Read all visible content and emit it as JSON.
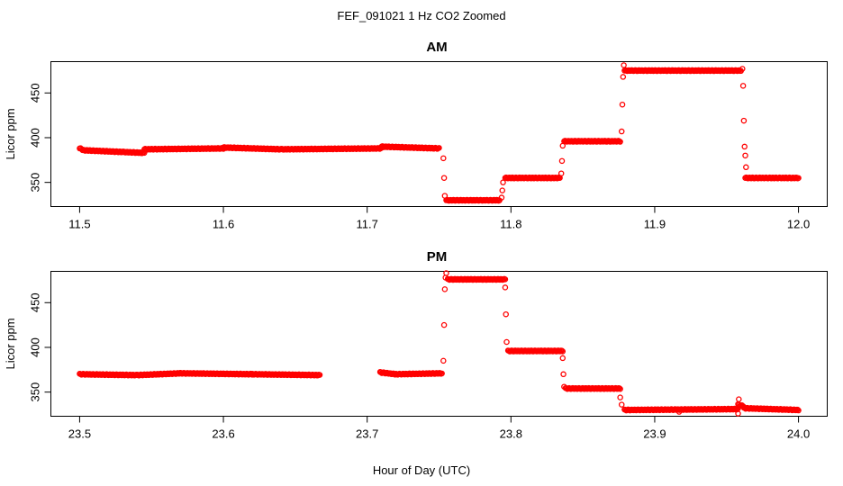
{
  "figure": {
    "title": "FEF_091021  1 Hz CO2 Zoomed",
    "xlabel": "Hour of Day (UTC)"
  },
  "chart_data": [
    {
      "type": "scatter",
      "title": "AM",
      "ylabel": "Licor ppm",
      "xlim": [
        11.48,
        12.02
      ],
      "ylim": [
        323,
        485
      ],
      "xticks": [
        11.5,
        11.6,
        11.7,
        11.8,
        11.9,
        12.0
      ],
      "xtick_labels": [
        "11.5",
        "11.6",
        "11.7",
        "11.8",
        "11.9",
        "12.0"
      ],
      "yticks": [
        350,
        400,
        450
      ],
      "ytick_labels": [
        "350",
        "400",
        "450"
      ],
      "grid": false,
      "legend": "none",
      "marker_color": "#ff0000",
      "runs": [
        {
          "x0": 11.5,
          "x1": 11.502,
          "y0": 388,
          "y1": 387
        },
        {
          "x0": 11.502,
          "x1": 11.53,
          "y0": 386,
          "y1": 384
        },
        {
          "x0": 11.53,
          "x1": 11.545,
          "y0": 384,
          "y1": 383
        },
        {
          "x0": 11.545,
          "x1": 11.6,
          "y0": 387,
          "y1": 388
        },
        {
          "x0": 11.6,
          "x1": 11.64,
          "y0": 389,
          "y1": 387
        },
        {
          "x0": 11.64,
          "x1": 11.71,
          "y0": 387,
          "y1": 388
        },
        {
          "x0": 11.71,
          "x1": 11.75,
          "y0": 390,
          "y1": 388
        },
        {
          "x0": 11.755,
          "x1": 11.792,
          "y0": 330,
          "y1": 330
        },
        {
          "x0": 11.796,
          "x1": 11.834,
          "y0": 355,
          "y1": 355
        },
        {
          "x0": 11.837,
          "x1": 11.876,
          "y0": 396,
          "y1": 396
        },
        {
          "x0": 11.879,
          "x1": 11.96,
          "y0": 475,
          "y1": 475
        },
        {
          "x0": 11.963,
          "x1": 12.0,
          "y0": 355,
          "y1": 355
        }
      ],
      "points": [
        {
          "x": 11.753,
          "y": 377
        },
        {
          "x": 11.7535,
          "y": 355
        },
        {
          "x": 11.754,
          "y": 335
        },
        {
          "x": 11.7935,
          "y": 333
        },
        {
          "x": 11.794,
          "y": 341
        },
        {
          "x": 11.7945,
          "y": 350
        },
        {
          "x": 11.835,
          "y": 360
        },
        {
          "x": 11.8355,
          "y": 374
        },
        {
          "x": 11.836,
          "y": 391
        },
        {
          "x": 11.877,
          "y": 407
        },
        {
          "x": 11.8775,
          "y": 437
        },
        {
          "x": 11.878,
          "y": 468
        },
        {
          "x": 11.8785,
          "y": 481
        },
        {
          "x": 11.961,
          "y": 477
        },
        {
          "x": 11.9615,
          "y": 458
        },
        {
          "x": 11.962,
          "y": 419
        },
        {
          "x": 11.9625,
          "y": 390
        },
        {
          "x": 11.963,
          "y": 380
        },
        {
          "x": 11.9635,
          "y": 367
        }
      ]
    },
    {
      "type": "scatter",
      "title": "PM",
      "ylabel": "Licor ppm",
      "xlim": [
        23.48,
        24.02
      ],
      "ylim": [
        323,
        485
      ],
      "xticks": [
        23.5,
        23.6,
        23.7,
        23.8,
        23.9,
        24.0
      ],
      "xtick_labels": [
        "23.5",
        "23.6",
        "23.7",
        "23.8",
        "23.9",
        "24.0"
      ],
      "yticks": [
        350,
        400,
        450
      ],
      "ytick_labels": [
        "350",
        "400",
        "450"
      ],
      "grid": false,
      "legend": "none",
      "marker_color": "#ff0000",
      "runs": [
        {
          "x0": 23.5,
          "x1": 23.54,
          "y0": 370,
          "y1": 369
        },
        {
          "x0": 23.54,
          "x1": 23.57,
          "y0": 369,
          "y1": 371
        },
        {
          "x0": 23.57,
          "x1": 23.62,
          "y0": 371,
          "y1": 370
        },
        {
          "x0": 23.62,
          "x1": 23.667,
          "y0": 370,
          "y1": 369
        },
        {
          "x0": 23.709,
          "x1": 23.72,
          "y0": 372,
          "y1": 370
        },
        {
          "x0": 23.72,
          "x1": 23.752,
          "y0": 370,
          "y1": 371
        },
        {
          "x0": 23.756,
          "x1": 23.796,
          "y0": 476,
          "y1": 476
        },
        {
          "x0": 23.798,
          "x1": 23.836,
          "y0": 396,
          "y1": 396
        },
        {
          "x0": 23.838,
          "x1": 23.876,
          "y0": 354,
          "y1": 354
        },
        {
          "x0": 23.879,
          "x1": 23.958,
          "y0": 330,
          "y1": 331
        },
        {
          "x0": 23.958,
          "x1": 23.962,
          "y0": 336,
          "y1": 334
        },
        {
          "x0": 23.962,
          "x1": 24.0,
          "y0": 332,
          "y1": 330
        }
      ],
      "points": [
        {
          "x": 23.753,
          "y": 385
        },
        {
          "x": 23.7535,
          "y": 425
        },
        {
          "x": 23.754,
          "y": 465
        },
        {
          "x": 23.7545,
          "y": 478
        },
        {
          "x": 23.755,
          "y": 483
        },
        {
          "x": 23.796,
          "y": 467
        },
        {
          "x": 23.7965,
          "y": 437
        },
        {
          "x": 23.797,
          "y": 406
        },
        {
          "x": 23.836,
          "y": 388
        },
        {
          "x": 23.8365,
          "y": 370
        },
        {
          "x": 23.837,
          "y": 356
        },
        {
          "x": 23.876,
          "y": 344
        },
        {
          "x": 23.877,
          "y": 336
        },
        {
          "x": 23.917,
          "y": 328
        },
        {
          "x": 23.958,
          "y": 326
        },
        {
          "x": 23.9585,
          "y": 342
        }
      ]
    }
  ]
}
